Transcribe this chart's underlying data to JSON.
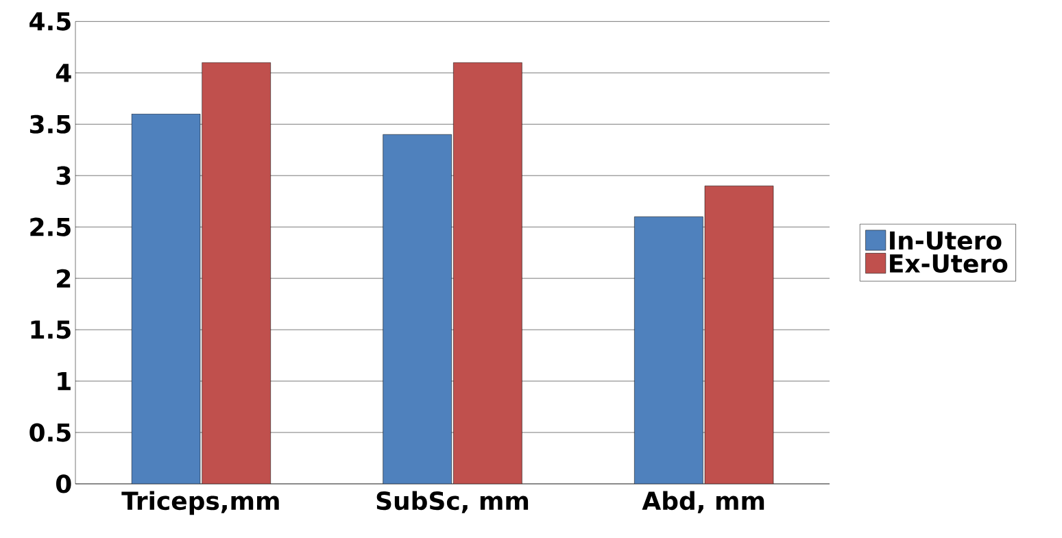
{
  "chart_data": {
    "type": "bar",
    "categories": [
      "Triceps,mm",
      "SubSc, mm",
      "Abd, mm"
    ],
    "series": [
      {
        "name": "In-Utero",
        "color": "#4f81bd",
        "values": [
          3.6,
          3.4,
          2.6
        ]
      },
      {
        "name": "Ex-Utero",
        "color": "#c0504d",
        "values": [
          4.1,
          4.1,
          2.9
        ]
      }
    ],
    "ylim": [
      0,
      4.5
    ],
    "yticks": [
      0,
      0.5,
      1,
      1.5,
      2,
      2.5,
      3,
      3.5,
      4,
      4.5
    ],
    "grid": "y",
    "legend": "right"
  }
}
